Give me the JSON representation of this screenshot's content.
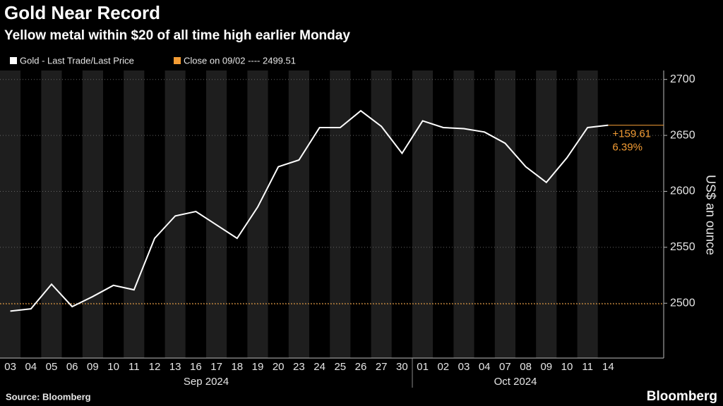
{
  "chart_data": {
    "type": "line",
    "title": "Gold Near Record",
    "subtitle": "Yellow metal within $20 of all time high earlier Monday",
    "y_label": "US$ an ounce",
    "source": "Source: Bloomberg",
    "brand": "Bloomberg",
    "categories": [
      "03",
      "04",
      "05",
      "06",
      "09",
      "10",
      "11",
      "12",
      "13",
      "16",
      "17",
      "18",
      "19",
      "20",
      "23",
      "24",
      "25",
      "26",
      "27",
      "30",
      "01",
      "02",
      "03",
      "04",
      "07",
      "08",
      "09",
      "10",
      "11",
      "14"
    ],
    "months": [
      "Sep 2024",
      "Oct 2024"
    ],
    "series": [
      {
        "name": "Gold - Last Trade/Last Price",
        "color": "#ffffff",
        "values": [
          2493,
          2495,
          2517,
          2497,
          2506,
          2516,
          2512,
          2558,
          2578,
          2582,
          2570,
          2558,
          2586,
          2622,
          2628,
          2657,
          2657,
          2672,
          2658,
          2634,
          2663,
          2657,
          2656,
          2653,
          2643,
          2622,
          2608,
          2630,
          2657,
          2659.12
        ]
      }
    ],
    "reference": {
      "label": "Close on 09/02 ---- 2499.51",
      "value": 2499.51,
      "color": "#f39c34"
    },
    "change": {
      "value": 159.61,
      "label": "+159.61"
    },
    "change_pct": {
      "value": 6.39,
      "label": "6.39%"
    },
    "ylim": [
      2451,
      2708
    ],
    "yticks": [
      2500,
      2550,
      2600,
      2650,
      2700
    ],
    "grid": true
  }
}
